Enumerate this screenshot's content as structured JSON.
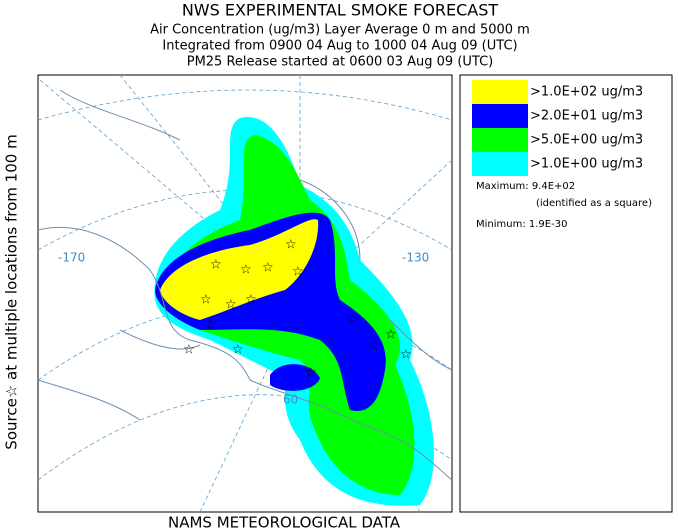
{
  "header": {
    "title": "NWS EXPERIMENTAL SMOKE FORECAST",
    "lines": [
      "Air Concentration (ug/m3) Layer Average    0 m and  5000 m",
      "Integrated from 0900 04 Aug to 1000 04 Aug 09 (UTC)",
      "PM25 Release started at 0600 03 Aug 09 (UTC)"
    ]
  },
  "side_label": "Source☆ at multiple locations   from  100 m",
  "footer": "NAMS METEOROLOGICAL DATA",
  "legend": {
    "entries": [
      {
        "label": ">1.0E+02 ug/m3",
        "color": "#ffff00"
      },
      {
        "label": ">2.0E+01 ug/m3",
        "color": "#0000ff"
      },
      {
        "label": ">5.0E+00 ug/m3",
        "color": "#00ff00"
      },
      {
        "label": ">1.0E+00 ug/m3",
        "color": "#00ffff"
      }
    ],
    "maximum": "Maximum: 9.4E+02",
    "note": "(identified as a square)",
    "minimum": "Minimum: 1.9E-30"
  },
  "map": {
    "labels": [
      "-170",
      "-130",
      "60"
    ]
  }
}
